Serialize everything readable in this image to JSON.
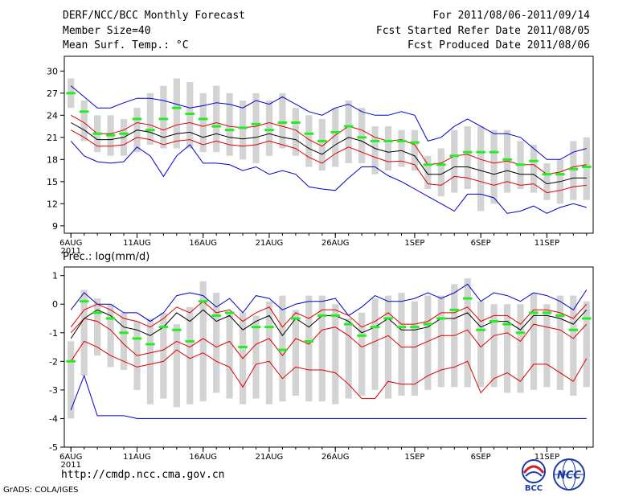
{
  "header": {
    "title": "DERF/NCC/BCC Monthly Forecast",
    "member_size": "Member Size=40",
    "variable_temp": "Mean Surf. Temp.: °C",
    "for_range": "For 2011/08/06-2011/09/14",
    "fcst_started": "Fcst Started Refer Date 2011/08/05",
    "fcst_produced": "Fcst Produced Date 2011/08/06"
  },
  "footer": {
    "url": "http://cmdp.ncc.cma.gov.cn",
    "credit": "GrADS: COLA/IGES",
    "logo_bcc": "BCC",
    "logo_ncc": "NCC"
  },
  "colors": {
    "box": "#d3d3d3",
    "observed": "#22ee22",
    "mean": "#000000",
    "spread": "#dd0000",
    "extreme": "#0000cc"
  },
  "chart_data": [
    {
      "type": "line",
      "title": "Mean Surf. Temp.: °C",
      "ylim": [
        8,
        32
      ],
      "yticks": [
        9,
        12,
        15,
        18,
        21,
        24,
        27,
        30
      ],
      "xlim": [
        0.5,
        40.5
      ],
      "xticks": [
        {
          "day": 1,
          "label": "6AUG",
          "sub": "2011"
        },
        {
          "day": 6,
          "label": "11AUG"
        },
        {
          "day": 11,
          "label": "16AUG"
        },
        {
          "day": 16,
          "label": "21AUG"
        },
        {
          "day": 21,
          "label": "26AUG"
        },
        {
          "day": 27,
          "label": "1SEP"
        },
        {
          "day": 32,
          "label": "6SEP"
        },
        {
          "day": 37,
          "label": "11SEP"
        }
      ],
      "days": [
        1,
        2,
        3,
        4,
        5,
        6,
        7,
        8,
        9,
        10,
        11,
        12,
        13,
        14,
        15,
        16,
        17,
        18,
        19,
        20,
        21,
        22,
        23,
        24,
        25,
        26,
        27,
        28,
        29,
        30,
        31,
        32,
        33,
        34,
        35,
        36,
        37,
        38,
        39,
        40
      ],
      "box_low": [
        25.0,
        20.5,
        19.0,
        18.5,
        18.5,
        19.0,
        20.0,
        19.5,
        19.5,
        19.5,
        19.0,
        19.0,
        18.5,
        18.0,
        17.5,
        18.5,
        19.5,
        18.5,
        17.0,
        16.5,
        17.0,
        17.5,
        17.5,
        16.0,
        16.5,
        17.0,
        16.5,
        14.0,
        13.0,
        13.5,
        14.0,
        11.0,
        12.0,
        13.5,
        14.0,
        13.5,
        12.5,
        12.0,
        12.5,
        12.5
      ],
      "box_high": [
        29.0,
        26.0,
        24.0,
        24.0,
        23.5,
        25.0,
        27.0,
        28.0,
        29.0,
        28.5,
        27.0,
        28.0,
        27.0,
        26.0,
        27.0,
        26.0,
        27.0,
        25.0,
        24.0,
        23.5,
        25.0,
        26.0,
        25.0,
        22.5,
        22.5,
        22.0,
        22.0,
        18.5,
        19.5,
        22.0,
        22.5,
        22.5,
        22.0,
        22.0,
        20.5,
        20.0,
        17.5,
        18.0,
        20.5,
        21.0
      ],
      "observed": [
        27.0,
        24.5,
        21.5,
        21.3,
        21.5,
        23.5,
        22.0,
        23.5,
        25.0,
        24.2,
        23.5,
        22.5,
        22.0,
        22.3,
        22.8,
        22.0,
        23.0,
        23.0,
        21.5,
        20.5,
        21.7,
        22.5,
        21.0,
        20.5,
        20.5,
        20.5,
        20.3,
        17.3,
        17.3,
        18.5,
        19.0,
        19.0,
        19.0,
        18.0,
        17.3,
        17.8,
        16.0,
        16.0,
        16.7,
        17.0
      ],
      "mean": [
        23.0,
        22.0,
        20.7,
        20.7,
        21.0,
        22.0,
        21.7,
        21.0,
        21.5,
        21.7,
        21.0,
        21.5,
        21.0,
        20.8,
        21.0,
        21.5,
        21.0,
        20.7,
        19.5,
        18.7,
        20.0,
        21.0,
        20.5,
        19.5,
        19.0,
        19.2,
        18.5,
        16.0,
        16.0,
        17.0,
        17.0,
        16.5,
        16.0,
        16.5,
        16.0,
        16.0,
        14.7,
        15.0,
        15.5,
        15.5
      ],
      "p_high": [
        24.0,
        23.0,
        21.5,
        21.5,
        22.0,
        23.0,
        22.7,
        22.0,
        22.7,
        23.0,
        22.5,
        23.0,
        22.5,
        22.3,
        22.5,
        23.0,
        22.5,
        22.0,
        20.7,
        19.8,
        21.3,
        22.5,
        22.0,
        21.0,
        20.5,
        20.7,
        20.0,
        17.3,
        17.5,
        18.5,
        18.7,
        18.0,
        17.5,
        17.8,
        17.3,
        17.3,
        16.0,
        16.3,
        17.0,
        17.3
      ],
      "p_low": [
        22.0,
        21.0,
        19.8,
        19.8,
        20.0,
        21.0,
        20.7,
        20.0,
        20.5,
        20.7,
        20.0,
        20.5,
        20.0,
        19.8,
        20.0,
        20.5,
        20.0,
        19.5,
        18.3,
        17.5,
        18.8,
        19.7,
        19.0,
        18.3,
        17.7,
        17.8,
        17.3,
        14.7,
        14.5,
        15.7,
        15.5,
        15.0,
        14.5,
        15.0,
        14.5,
        14.7,
        13.5,
        13.8,
        14.3,
        14.5
      ],
      "max": [
        28.0,
        26.5,
        25.0,
        25.0,
        25.7,
        26.3,
        26.3,
        26.0,
        25.5,
        25.0,
        25.3,
        25.7,
        25.5,
        25.0,
        26.0,
        25.5,
        26.5,
        25.5,
        24.5,
        24.0,
        25.0,
        25.5,
        24.5,
        24.0,
        24.0,
        24.5,
        24.0,
        20.5,
        21.0,
        22.5,
        23.5,
        22.5,
        21.5,
        21.5,
        21.0,
        19.5,
        18.0,
        18.0,
        19.0,
        19.5
      ],
      "min": [
        20.5,
        18.5,
        17.7,
        17.5,
        17.7,
        19.7,
        18.5,
        15.7,
        18.5,
        20.0,
        17.5,
        17.5,
        17.3,
        16.5,
        17.0,
        16.0,
        16.5,
        16.0,
        14.3,
        14.0,
        13.8,
        15.5,
        17.0,
        17.0,
        15.8,
        15.0,
        14.0,
        13.0,
        12.0,
        11.0,
        13.3,
        13.3,
        12.8,
        10.7,
        11.0,
        11.7,
        10.7,
        11.5,
        12.0,
        11.5
      ]
    },
    {
      "type": "line",
      "title": "Prec.: log(mm/d)",
      "ylim": [
        -5,
        1.3
      ],
      "yticks": [
        -5,
        -4,
        -3,
        -2,
        -1,
        0,
        1
      ],
      "xlim": [
        0.5,
        40.5
      ],
      "xticks": [
        {
          "day": 1,
          "label": "6AUG",
          "sub": "2011"
        },
        {
          "day": 6,
          "label": "11AUG"
        },
        {
          "day": 11,
          "label": "16AUG"
        },
        {
          "day": 16,
          "label": "21AUG"
        },
        {
          "day": 21,
          "label": "26AUG"
        },
        {
          "day": 27,
          "label": "1SEP"
        },
        {
          "day": 32,
          "label": "6SEP"
        },
        {
          "day": 37,
          "label": "11SEP"
        }
      ],
      "days": [
        1,
        2,
        3,
        4,
        5,
        6,
        7,
        8,
        9,
        10,
        11,
        12,
        13,
        14,
        15,
        16,
        17,
        18,
        19,
        20,
        21,
        22,
        23,
        24,
        25,
        26,
        27,
        28,
        29,
        30,
        31,
        32,
        33,
        34,
        35,
        36,
        37,
        38,
        39,
        40
      ],
      "box_low": [
        -4.0,
        -2.5,
        -1.8,
        -2.2,
        -2.3,
        -3.0,
        -3.5,
        -3.3,
        -3.6,
        -3.5,
        -3.4,
        -3.1,
        -3.3,
        -3.5,
        -3.3,
        -3.5,
        -3.4,
        -3.2,
        -3.4,
        -3.4,
        -3.5,
        -3.3,
        -3.2,
        -3.0,
        -3.3,
        -3.2,
        -3.2,
        -3.0,
        -2.9,
        -2.9,
        -2.9,
        -2.9,
        -2.9,
        -3.1,
        -3.1,
        -3.0,
        -2.9,
        -3.0,
        -3.2,
        -2.9
      ],
      "box_high": [
        -1.3,
        0.5,
        0.2,
        0.0,
        -0.3,
        -0.6,
        -0.5,
        -0.3,
        -0.7,
        -0.1,
        0.8,
        0.4,
        -0.3,
        -0.3,
        -0.4,
        0.1,
        0.3,
        -0.2,
        0.3,
        0.3,
        0.0,
        -0.5,
        -0.3,
        0.2,
        0.3,
        0.4,
        0.1,
        0.3,
        0.3,
        0.7,
        0.9,
        0.1,
        0.0,
        0.0,
        0.0,
        0.4,
        0.0,
        0.3,
        0.3,
        0.1
      ],
      "observed": [
        -2.0,
        0.1,
        -0.3,
        -0.5,
        -1.0,
        -1.2,
        -1.4,
        -0.8,
        -0.9,
        -1.3,
        0.1,
        -0.4,
        -0.3,
        -1.5,
        -0.8,
        -0.8,
        -1.6,
        -0.5,
        -1.3,
        -0.4,
        -0.4,
        -0.7,
        -1.1,
        -0.8,
        -0.5,
        -0.8,
        -0.8,
        -0.7,
        -0.5,
        -0.2,
        0.2,
        -0.9,
        -0.6,
        -0.7,
        -1.0,
        -0.3,
        -0.3,
        -0.4,
        -0.9,
        -0.5
      ],
      "mean": [
        -1.2,
        -0.5,
        -0.2,
        -0.4,
        -0.8,
        -0.9,
        -1.1,
        -0.8,
        -0.3,
        -0.6,
        -0.2,
        -0.6,
        -0.4,
        -0.9,
        -0.6,
        -0.4,
        -1.1,
        -0.5,
        -0.8,
        -0.4,
        -0.4,
        -0.6,
        -1.0,
        -0.8,
        -0.5,
        -0.9,
        -0.9,
        -0.8,
        -0.5,
        -0.5,
        -0.3,
        -0.8,
        -0.6,
        -0.6,
        -0.9,
        -0.4,
        -0.4,
        -0.5,
        -0.7,
        -0.2
      ],
      "p_high": [
        -0.8,
        -0.2,
        0.0,
        -0.2,
        -0.5,
        -0.6,
        -0.8,
        -0.5,
        -0.1,
        -0.3,
        0.1,
        -0.3,
        -0.2,
        -0.6,
        -0.3,
        -0.1,
        -0.8,
        -0.3,
        -0.5,
        -0.2,
        -0.2,
        -0.4,
        -0.8,
        -0.6,
        -0.3,
        -0.7,
        -0.7,
        -0.6,
        -0.3,
        -0.3,
        -0.1,
        -0.6,
        -0.4,
        -0.4,
        -0.7,
        -0.2,
        -0.2,
        -0.3,
        -0.5,
        0.0
      ],
      "p_low": [
        -1.0,
        -0.5,
        -0.6,
        -0.9,
        -1.4,
        -1.8,
        -1.7,
        -1.6,
        -1.3,
        -1.5,
        -1.2,
        -1.5,
        -1.3,
        -1.9,
        -1.4,
        -1.2,
        -1.8,
        -1.2,
        -1.4,
        -0.9,
        -0.8,
        -1.1,
        -1.5,
        -1.3,
        -1.1,
        -1.5,
        -1.5,
        -1.3,
        -1.1,
        -1.1,
        -0.9,
        -1.5,
        -1.1,
        -1.0,
        -1.3,
        -0.7,
        -0.8,
        -0.9,
        -1.2,
        -0.7
      ],
      "p_low2": [
        -2.0,
        -1.3,
        -1.5,
        -1.8,
        -2.0,
        -2.2,
        -2.1,
        -2.0,
        -1.6,
        -1.9,
        -1.7,
        -2.0,
        -2.2,
        -2.9,
        -2.1,
        -2.0,
        -2.6,
        -2.2,
        -2.3,
        -2.3,
        -2.4,
        -2.8,
        -3.3,
        -3.3,
        -2.7,
        -2.8,
        -2.8,
        -2.5,
        -2.3,
        -2.2,
        -2.0,
        -3.1,
        -2.6,
        -2.4,
        -2.7,
        -2.1,
        -2.1,
        -2.4,
        -2.7,
        -1.9
      ],
      "max": [
        -0.2,
        0.4,
        0.0,
        0.0,
        -0.3,
        -0.3,
        -0.6,
        -0.3,
        0.3,
        0.4,
        0.3,
        -0.1,
        0.2,
        -0.3,
        0.3,
        0.2,
        -0.2,
        0.0,
        0.1,
        0.1,
        0.2,
        -0.4,
        -0.1,
        0.3,
        0.1,
        0.1,
        0.2,
        0.4,
        0.2,
        0.4,
        0.7,
        0.1,
        0.4,
        0.3,
        0.1,
        0.4,
        0.3,
        0.1,
        -0.2,
        0.5
      ],
      "min": [
        -3.7,
        -2.5,
        -3.9,
        -3.9,
        -3.9,
        -4.0,
        -4.0,
        -4.0,
        -4.0,
        -4.0,
        -4.0,
        -4.0,
        -4.0,
        -4.0,
        -4.0,
        -4.0,
        -4.0,
        -4.0,
        -4.0,
        -4.0,
        -4.0,
        -4.0,
        -4.0,
        -4.0,
        -4.0,
        -4.0,
        -4.0,
        -4.0,
        -4.0,
        -4.0,
        -4.0,
        -4.0,
        -4.0,
        -4.0,
        -4.0,
        -4.0,
        -4.0,
        -4.0,
        -4.0,
        -4.0
      ]
    }
  ]
}
